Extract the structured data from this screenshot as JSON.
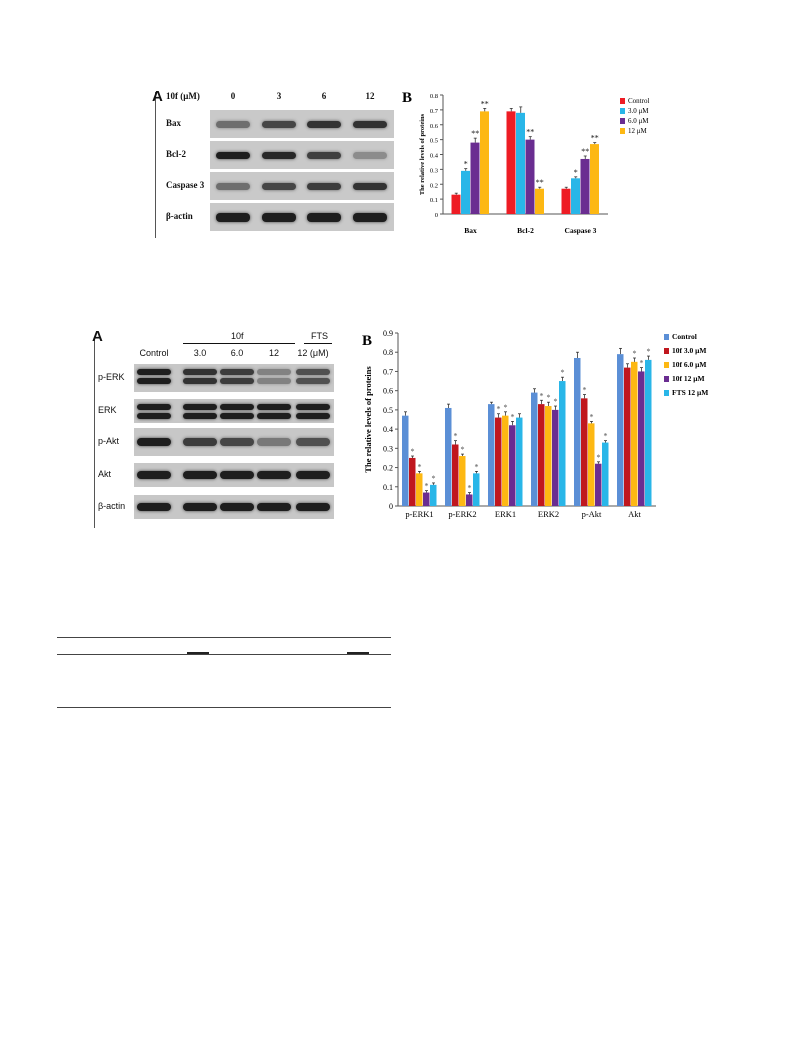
{
  "figure1": {
    "panel_a": {
      "letter": "A",
      "dose_header": "10f  (μM)",
      "doses": [
        "0",
        "3",
        "6",
        "12"
      ],
      "rows": [
        "Bax",
        "Bcl-2",
        "Caspase 3",
        "β-actin"
      ],
      "band_intensity": [
        [
          0.55,
          0.75,
          0.85,
          0.85
        ],
        [
          0.95,
          0.9,
          0.78,
          0.4
        ],
        [
          0.55,
          0.75,
          0.8,
          0.85
        ],
        [
          0.95,
          0.95,
          0.95,
          0.95
        ]
      ]
    },
    "panel_b": {
      "letter": "B",
      "chart_data": {
        "type": "bar",
        "title": "",
        "xlabel": "",
        "ylabel": "The relative levels of proteins",
        "ylim": [
          0,
          0.8
        ],
        "yticks": [
          "0",
          "0.1",
          "0.2",
          "0.3",
          "0.4",
          "0.5",
          "0.6",
          "0.7",
          "0.8"
        ],
        "categories": [
          "Bax",
          "Bcl-2",
          "Caspase 3"
        ],
        "series": [
          {
            "name": "Control",
            "color": "#ee1c24",
            "values": [
              0.13,
              0.69,
              0.17
            ],
            "errors": [
              0.01,
              0.02,
              0.01
            ],
            "sig": [
              "",
              "",
              ""
            ]
          },
          {
            "name": "3.0  μM",
            "color": "#29b6e8",
            "values": [
              0.29,
              0.68,
              0.24
            ],
            "errors": [
              0.015,
              0.04,
              0.01
            ],
            "sig": [
              "*",
              "",
              "*"
            ]
          },
          {
            "name": "6.0  μM",
            "color": "#6a2d91",
            "values": [
              0.48,
              0.5,
              0.37
            ],
            "errors": [
              0.03,
              0.02,
              0.02
            ],
            "sig": [
              "**",
              "**",
              "**"
            ]
          },
          {
            "name": "12  μM",
            "color": "#fdb813",
            "values": [
              0.69,
              0.17,
              0.47
            ],
            "errors": [
              0.02,
              0.01,
              0.01
            ],
            "sig": [
              "**",
              "**",
              "**"
            ]
          }
        ],
        "legend_position": "top-right"
      }
    }
  },
  "figure2": {
    "panel_a": {
      "letter": "A",
      "group_10f": "10f",
      "group_fts": "FTS",
      "columns": [
        "Control",
        "3.0",
        "6.0",
        "12",
        "12 (μM)"
      ],
      "rows": [
        "p-ERK",
        "ERK",
        "p-Akt",
        "Akt",
        "β-actin"
      ],
      "double_band": [
        true,
        true,
        false,
        false,
        false
      ],
      "band_intensity": [
        [
          0.95,
          0.85,
          0.8,
          0.45,
          0.7
        ],
        [
          0.95,
          0.95,
          0.95,
          0.95,
          0.95
        ],
        [
          0.95,
          0.8,
          0.75,
          0.5,
          0.7
        ],
        [
          0.95,
          0.95,
          0.95,
          0.95,
          0.95
        ],
        [
          0.95,
          0.95,
          0.95,
          0.95,
          0.95
        ]
      ]
    },
    "panel_b": {
      "letter": "B",
      "chart_data": {
        "type": "bar",
        "title": "",
        "xlabel": "",
        "ylabel": "The relative levels of proteins",
        "ylim": [
          0,
          0.9
        ],
        "yticks": [
          "0",
          "0.1",
          "0.2",
          "0.3",
          "0.4",
          "0.5",
          "0.6",
          "0.7",
          "0.8",
          "0.9"
        ],
        "categories": [
          "p-ERK1",
          "p-ERK2",
          "ERK1",
          "ERK2",
          "p-Akt",
          "Akt"
        ],
        "series": [
          {
            "name": "Control",
            "color": "#5b8fd6",
            "values": [
              0.47,
              0.51,
              0.53,
              0.59,
              0.77,
              0.79
            ],
            "errors": [
              0.02,
              0.02,
              0.01,
              0.02,
              0.03,
              0.03
            ],
            "sig": [
              "",
              "",
              "",
              "",
              "",
              ""
            ]
          },
          {
            "name": "10f 3.0 μM",
            "color": "#c0171e",
            "values": [
              0.25,
              0.32,
              0.46,
              0.53,
              0.56,
              0.72
            ],
            "errors": [
              0.01,
              0.02,
              0.02,
              0.02,
              0.02,
              0.02
            ],
            "sig": [
              "*",
              "*",
              "*",
              "*",
              "*",
              ""
            ]
          },
          {
            "name": "10f 6.0 μM",
            "color": "#fdb813",
            "values": [
              0.17,
              0.26,
              0.47,
              0.52,
              0.43,
              0.75
            ],
            "errors": [
              0.01,
              0.01,
              0.02,
              0.02,
              0.01,
              0.02
            ],
            "sig": [
              "*",
              "*",
              "*",
              "*",
              "*",
              "*"
            ]
          },
          {
            "name": "10f 12 μM",
            "color": "#6a2d91",
            "values": [
              0.07,
              0.06,
              0.42,
              0.5,
              0.22,
              0.7
            ],
            "errors": [
              0.01,
              0.01,
              0.02,
              0.02,
              0.01,
              0.02
            ],
            "sig": [
              "*",
              "*",
              "*",
              "*",
              "*",
              "*"
            ]
          },
          {
            "name": "FTS 12 μM",
            "color": "#29b6e8",
            "values": [
              0.11,
              0.17,
              0.46,
              0.65,
              0.33,
              0.76
            ],
            "errors": [
              0.01,
              0.01,
              0.02,
              0.02,
              0.01,
              0.02
            ],
            "sig": [
              "*",
              "*",
              "",
              "*",
              "*",
              "*"
            ]
          }
        ],
        "legend_position": "top-right"
      }
    }
  }
}
